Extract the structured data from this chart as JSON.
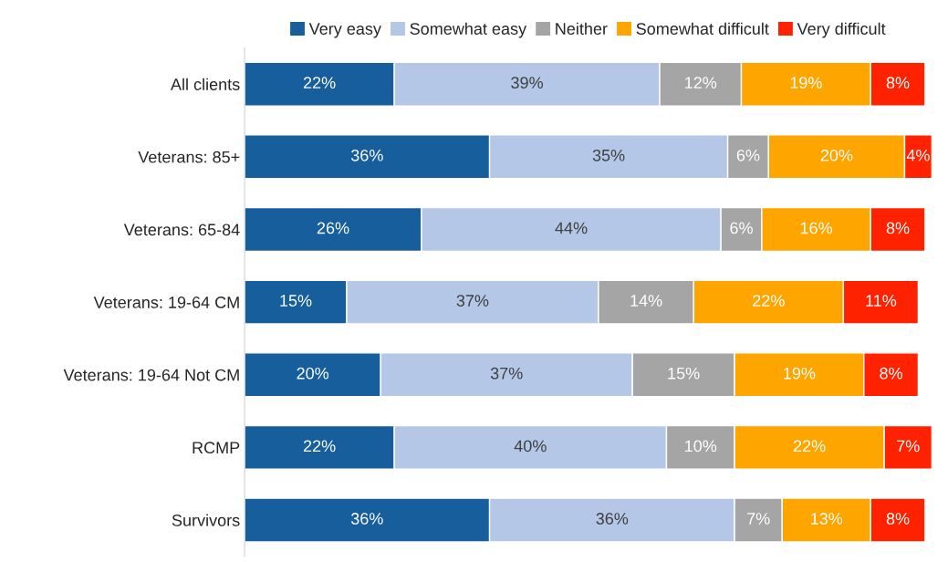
{
  "chart_data": {
    "type": "bar",
    "orientation": "horizontal",
    "stacked": true,
    "legend": "top",
    "grid": false,
    "categories": [
      "All clients",
      "Veterans: 85+",
      "Veterans: 65-84",
      "Veterans: 19-64 CM",
      "Veterans: 19-64 Not CM",
      "RCMP",
      "Survivors"
    ],
    "series": [
      {
        "name": "Very easy",
        "color": "#175e9c",
        "values": [
          22,
          36,
          26,
          15,
          20,
          22,
          36
        ],
        "value_labels": [
          "22%",
          "36%",
          "26%",
          "15%",
          "20%",
          "22%",
          "36%"
        ]
      },
      {
        "name": "Somewhat easy",
        "color": "#b4c7e7",
        "values": [
          39,
          35,
          44,
          37,
          37,
          40,
          36
        ],
        "value_labels": [
          "39%",
          "35%",
          "44%",
          "37%",
          "37%",
          "40%",
          "36%"
        ]
      },
      {
        "name": "Neither",
        "color": "#a5a5a5",
        "values": [
          12,
          6,
          6,
          14,
          15,
          10,
          7
        ],
        "value_labels": [
          "12%",
          "6%",
          "6%",
          "14%",
          "15%",
          "10%",
          "7%"
        ]
      },
      {
        "name": "Somewhat difficult",
        "color": "#ffa500",
        "values": [
          19,
          20,
          16,
          22,
          19,
          22,
          13
        ],
        "value_labels": [
          "19%",
          "20%",
          "16%",
          "22%",
          "19%",
          "22%",
          "13%"
        ]
      },
      {
        "name": "Very difficult",
        "color": "#ff2200",
        "values": [
          8,
          4,
          8,
          11,
          8,
          7,
          8
        ],
        "value_labels": [
          "8%",
          "4%",
          "8%",
          "11%",
          "8%",
          "7%",
          "8%"
        ]
      }
    ]
  }
}
